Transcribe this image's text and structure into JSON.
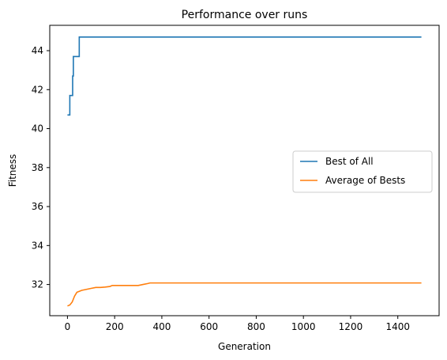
{
  "chart_data": {
    "type": "line",
    "title": "Performance over runs",
    "xlabel": "Generation",
    "ylabel": "Fitness",
    "xlim": [
      -75,
      1575
    ],
    "ylim": [
      30.4,
      45.3
    ],
    "x_ticks": [
      0,
      200,
      400,
      600,
      800,
      1000,
      1200,
      1400
    ],
    "y_ticks": [
      32,
      34,
      36,
      38,
      40,
      42,
      44
    ],
    "grid": false,
    "legend_position": "center-right",
    "series": [
      {
        "name": "Best of All",
        "color": "#1f77b4",
        "step": true,
        "x": [
          0,
          10,
          22,
          25,
          28,
          35,
          50,
          55,
          1500
        ],
        "y": [
          40.7,
          41.7,
          42.7,
          43.7,
          43.7,
          43.7,
          44.7,
          44.7,
          44.7
        ]
      },
      {
        "name": "Average of Bests",
        "color": "#ff7f0e",
        "step": false,
        "x": [
          0,
          10,
          20,
          30,
          40,
          50,
          60,
          80,
          100,
          120,
          140,
          160,
          180,
          190,
          200,
          250,
          300,
          320,
          340,
          350,
          400,
          500,
          1500
        ],
        "y": [
          30.9,
          30.95,
          31.1,
          31.4,
          31.6,
          31.65,
          31.7,
          31.75,
          31.8,
          31.85,
          31.85,
          31.87,
          31.9,
          31.95,
          31.95,
          31.95,
          31.95,
          32.0,
          32.05,
          32.08,
          32.08,
          32.08,
          32.08
        ]
      }
    ]
  }
}
